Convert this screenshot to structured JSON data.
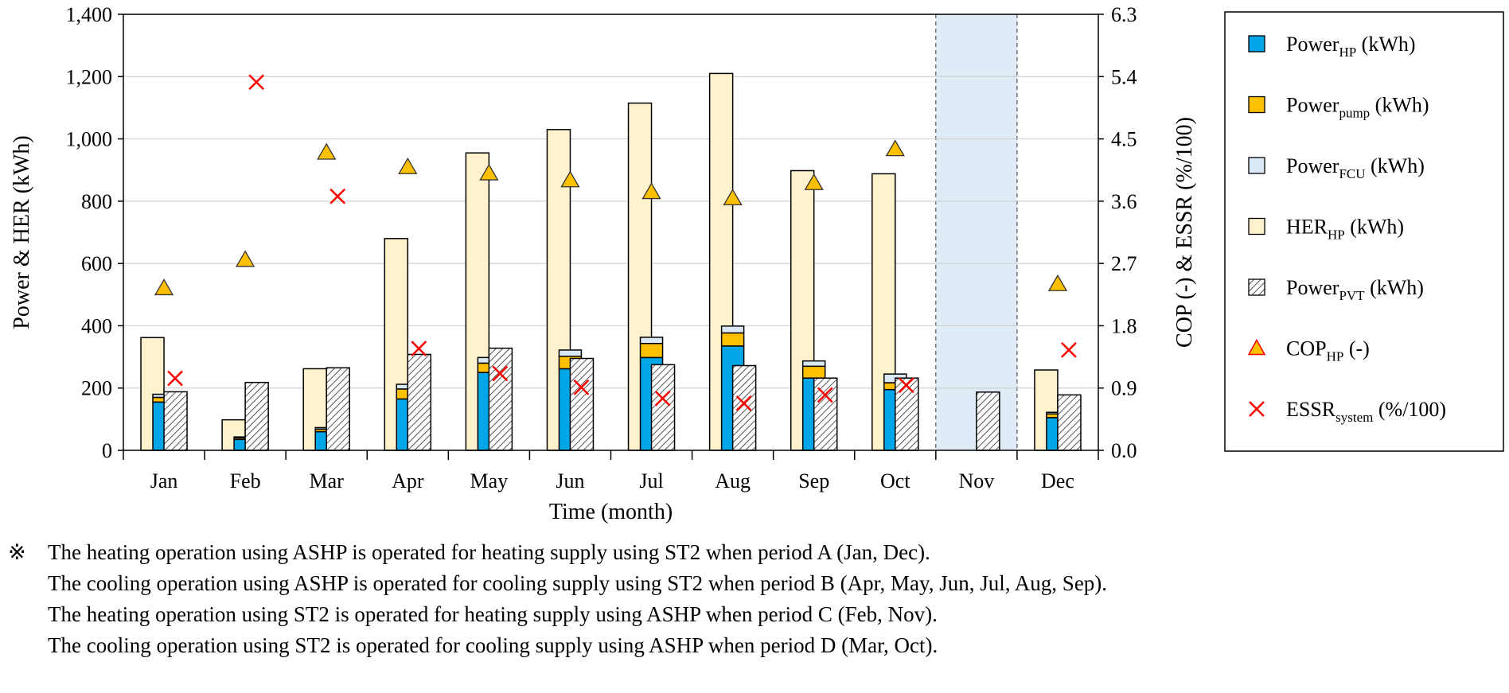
{
  "chart_data": {
    "type": "bar",
    "xlabel": "Time (month)",
    "ylabel_left": "Power & HER (kWh)",
    "ylabel_right": "COP (-) & ESSR (%/100)",
    "ylim_left": [
      0,
      1400
    ],
    "ylim_right": [
      0,
      6.3
    ],
    "yticks_left": [
      "0",
      "200",
      "400",
      "600",
      "800",
      "1,000",
      "1,200",
      "1,400"
    ],
    "yticks_right": [
      "0.0",
      "0.9",
      "1.8",
      "2.7",
      "3.6",
      "4.5",
      "5.4",
      "6.3"
    ],
    "grid": true,
    "legend_position": "right",
    "categories": [
      "Jan",
      "Feb",
      "Mar",
      "Apr",
      "May",
      "Jun",
      "Jul",
      "Aug",
      "Sep",
      "Oct",
      "Nov",
      "Dec"
    ],
    "shaded_category": "Nov",
    "series": [
      {
        "name": "Power_HP (kWh)",
        "axis": "left",
        "kind": "stacked",
        "values": [
          155,
          35,
          60,
          165,
          250,
          262,
          298,
          335,
          232,
          195,
          0,
          105
        ]
      },
      {
        "name": "Power_pump (kWh)",
        "axis": "left",
        "kind": "stacked",
        "values": [
          15,
          5,
          8,
          32,
          30,
          40,
          45,
          42,
          38,
          22,
          0,
          12
        ]
      },
      {
        "name": "Power_FCU (kWh)",
        "axis": "left",
        "kind": "stacked",
        "values": [
          10,
          3,
          5,
          15,
          18,
          20,
          20,
          22,
          17,
          28,
          0,
          5
        ]
      },
      {
        "name": "HER_HP (kWh)",
        "axis": "left",
        "kind": "bar",
        "values": [
          362,
          98,
          262,
          680,
          955,
          1030,
          1115,
          1210,
          898,
          888,
          0,
          258
        ]
      },
      {
        "name": "Power_PVT (kWh)",
        "axis": "left",
        "kind": "bar",
        "values": [
          188,
          218,
          265,
          308,
          328,
          295,
          275,
          272,
          232,
          232,
          187,
          178
        ]
      },
      {
        "name": "COP_HP (-)",
        "axis": "right",
        "kind": "marker",
        "values": [
          2.34,
          2.75,
          4.3,
          4.09,
          4.0,
          3.9,
          3.73,
          3.64,
          3.86,
          4.35,
          null,
          2.4
        ]
      },
      {
        "name": "ESSR_system (%/100)",
        "axis": "right",
        "kind": "marker",
        "values": [
          1.04,
          5.32,
          3.67,
          1.47,
          1.11,
          0.91,
          0.75,
          0.68,
          0.8,
          0.94,
          null,
          1.45
        ]
      }
    ],
    "legend": [
      {
        "main": "Power",
        "sub": "HP",
        "tail": " (kWh)",
        "symbol": "hp-square"
      },
      {
        "main": "Power",
        "sub": "pump",
        "tail": " (kWh)",
        "symbol": "pump-square"
      },
      {
        "main": "Power",
        "sub": "FCU",
        "tail": " (kWh)",
        "symbol": "fcu-square"
      },
      {
        "main": "HER",
        "sub": "HP",
        "tail": " (kWh)",
        "symbol": "her-square"
      },
      {
        "main": "Power",
        "sub": "PVT",
        "tail": " (kWh)",
        "symbol": "pvt-hatch"
      },
      {
        "main": "COP",
        "sub": "HP",
        "tail": " (-)",
        "symbol": "triangle"
      },
      {
        "main": "ESSR",
        "sub": "system",
        "tail": "  (%/100)",
        "symbol": "cross"
      }
    ]
  },
  "colors": {
    "hp": "#00a6e8",
    "pump": "#ffc000",
    "fcu": "#dbe9f6",
    "her": "#fff2cc",
    "pvt_bg": "#ffffff",
    "cop": "#ffc000",
    "essr": "#ff0000",
    "shade": "#dfebf7",
    "grid": "#d0d0d0"
  },
  "notes": {
    "mark": "※",
    "lines": [
      "The heating operation using ASHP is operated for heating supply using ST2 when period A (Jan, Dec).",
      "The cooling operation using ASHP is operated for cooling supply using ST2 when period B (Apr, May, Jun, Jul, Aug, Sep).",
      "The heating operation using ST2 is operated for heating supply using ASHP when period C (Feb, Nov).",
      "The cooling operation using ST2 is operated for cooling supply using ASHP when period D (Mar, Oct)."
    ]
  }
}
